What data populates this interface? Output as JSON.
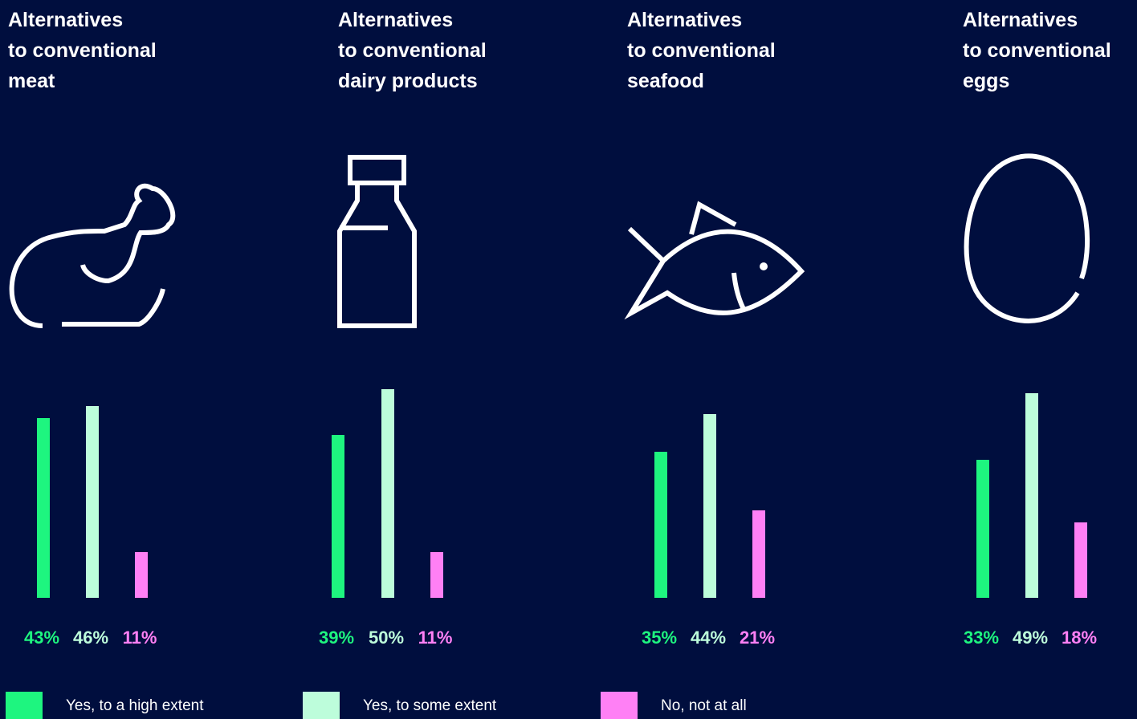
{
  "chart_data": [
    {
      "type": "bar",
      "title": "Alternatives\nto conventional\nmeat",
      "values": [
        43,
        46,
        11
      ],
      "value_labels": [
        "43%",
        "46%",
        "11%"
      ]
    },
    {
      "type": "bar",
      "title": "Alternatives\nto conventional\ndairy products",
      "values": [
        39,
        50,
        11
      ],
      "value_labels": [
        "39%",
        "50%",
        "11%"
      ]
    },
    {
      "type": "bar",
      "title": "Alternatives\nto conventional\nseafood",
      "values": [
        35,
        44,
        21
      ],
      "value_labels": [
        "35%",
        "44%",
        "21%"
      ]
    },
    {
      "type": "bar",
      "title": "Alternatives\nto conventional\neggs",
      "values": [
        33,
        49,
        18
      ],
      "value_labels": [
        "33%",
        "49%",
        "18%"
      ]
    }
  ],
  "legend": [
    {
      "name": "Yes, to a high extent",
      "color": "#1ef57f"
    },
    {
      "name": "Yes, to some extent",
      "color": "#bdfddb"
    },
    {
      "name": "No, not at all",
      "color": "#ff80f5"
    }
  ]
}
